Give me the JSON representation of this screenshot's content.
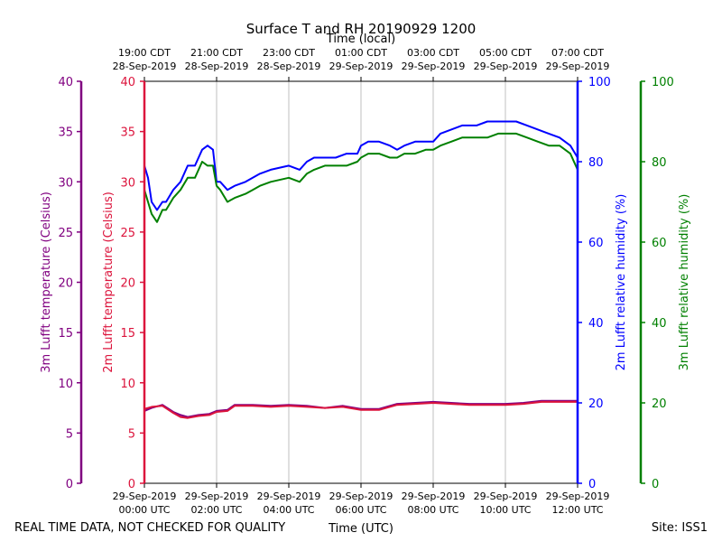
{
  "chart_data": {
    "type": "line",
    "title": "Surface T and RH 20190929 1200",
    "top_axis_label": "Time (local)",
    "xlabel": "Time (UTC)",
    "footer_left": "REAL TIME DATA, NOT CHECKED FOR QUALITY",
    "footer_right": "Site: ISS1",
    "x_range_hours": [
      0,
      12
    ],
    "x_ticks_utc": [
      {
        "h": 0,
        "line1": "29-Sep-2019",
        "line2": "00:00 UTC"
      },
      {
        "h": 2,
        "line1": "29-Sep-2019",
        "line2": "02:00 UTC"
      },
      {
        "h": 4,
        "line1": "29-Sep-2019",
        "line2": "04:00 UTC"
      },
      {
        "h": 6,
        "line1": "29-Sep-2019",
        "line2": "06:00 UTC"
      },
      {
        "h": 8,
        "line1": "29-Sep-2019",
        "line2": "08:00 UTC"
      },
      {
        "h": 10,
        "line1": "29-Sep-2019",
        "line2": "10:00 UTC"
      },
      {
        "h": 12,
        "line1": "29-Sep-2019",
        "line2": "12:00 UTC"
      }
    ],
    "x_ticks_local": [
      {
        "h": 0,
        "line1": "19:00 CDT",
        "line2": "28-Sep-2019"
      },
      {
        "h": 2,
        "line1": "21:00 CDT",
        "line2": "28-Sep-2019"
      },
      {
        "h": 4,
        "line1": "23:00 CDT",
        "line2": "28-Sep-2019"
      },
      {
        "h": 6,
        "line1": "01:00 CDT",
        "line2": "29-Sep-2019"
      },
      {
        "h": 8,
        "line1": "03:00 CDT",
        "line2": "29-Sep-2019"
      },
      {
        "h": 10,
        "line1": "05:00 CDT",
        "line2": "29-Sep-2019"
      },
      {
        "h": 12,
        "line1": "07:00 CDT",
        "line2": "29-Sep-2019"
      }
    ],
    "axes": {
      "temp3m": {
        "label": "3m Lufft temperature (Celsius)",
        "range": [
          0,
          40
        ],
        "ticks": [
          0,
          5,
          10,
          15,
          20,
          25,
          30,
          35,
          40
        ],
        "color": "#800080"
      },
      "temp2m": {
        "label": "2m Lufft temperature (Celsius)",
        "range": [
          0,
          40
        ],
        "ticks": [
          0,
          5,
          10,
          15,
          20,
          25,
          30,
          35,
          40
        ],
        "color": "#dc143c"
      },
      "rh2m": {
        "label": "2m Lufft relative humidity (%)",
        "range": [
          0,
          100
        ],
        "ticks": [
          0,
          20,
          40,
          60,
          80,
          100
        ],
        "color": "#0000ff"
      },
      "rh3m": {
        "label": "3m Lufft relative humidity (%)",
        "range": [
          0,
          100
        ],
        "ticks": [
          0,
          20,
          40,
          60,
          80,
          100
        ],
        "color": "#008000"
      }
    },
    "series": [
      {
        "name": "2m Lufft relative humidity (%)",
        "axis": "rh2m",
        "color": "#0000ff",
        "x": [
          0,
          0.1,
          0.2,
          0.35,
          0.5,
          0.6,
          0.8,
          1.0,
          1.2,
          1.4,
          1.6,
          1.75,
          1.9,
          2.0,
          2.1,
          2.3,
          2.5,
          2.8,
          3.0,
          3.2,
          3.5,
          4.0,
          4.3,
          4.5,
          4.7,
          5.0,
          5.3,
          5.6,
          5.9,
          6.0,
          6.2,
          6.5,
          6.8,
          7.0,
          7.2,
          7.5,
          7.8,
          8.0,
          8.2,
          8.5,
          8.8,
          9.0,
          9.2,
          9.5,
          9.8,
          10.0,
          10.3,
          10.6,
          10.9,
          11.2,
          11.5,
          11.8,
          12.0
        ],
        "values": [
          79,
          76,
          70,
          68,
          70,
          70,
          73,
          75,
          79,
          79,
          83,
          84,
          83,
          75,
          75,
          73,
          74,
          75,
          76,
          77,
          78,
          79,
          78,
          80,
          81,
          81,
          81,
          82,
          82,
          84,
          85,
          85,
          84,
          83,
          84,
          85,
          85,
          85,
          87,
          88,
          89,
          89,
          89,
          90,
          90,
          90,
          90,
          89,
          88,
          87,
          86,
          84,
          81
        ]
      },
      {
        "name": "3m Lufft relative humidity (%)",
        "axis": "rh3m",
        "color": "#008000",
        "x": [
          0,
          0.1,
          0.2,
          0.35,
          0.5,
          0.6,
          0.8,
          1.0,
          1.2,
          1.4,
          1.6,
          1.75,
          1.9,
          2.0,
          2.1,
          2.3,
          2.5,
          2.8,
          3.0,
          3.2,
          3.5,
          4.0,
          4.3,
          4.5,
          4.7,
          5.0,
          5.3,
          5.6,
          5.9,
          6.0,
          6.2,
          6.5,
          6.8,
          7.0,
          7.2,
          7.5,
          7.8,
          8.0,
          8.2,
          8.5,
          8.8,
          9.0,
          9.2,
          9.5,
          9.8,
          10.0,
          10.3,
          10.6,
          10.9,
          11.2,
          11.5,
          11.8,
          12.0
        ],
        "values": [
          73,
          70,
          67,
          65,
          68,
          68,
          71,
          73,
          76,
          76,
          80,
          79,
          79,
          74,
          73,
          70,
          71,
          72,
          73,
          74,
          75,
          76,
          75,
          77,
          78,
          79,
          79,
          79,
          80,
          81,
          82,
          82,
          81,
          81,
          82,
          82,
          83,
          83,
          84,
          85,
          86,
          86,
          86,
          86,
          87,
          87,
          87,
          86,
          85,
          84,
          84,
          82,
          78
        ]
      },
      {
        "name": "3m Lufft temperature (Celsius)",
        "axis": "temp3m",
        "color": "#800080",
        "x": [
          0,
          0.2,
          0.5,
          0.8,
          1.0,
          1.2,
          1.5,
          1.8,
          2.0,
          2.3,
          2.5,
          3.0,
          3.5,
          4.0,
          4.5,
          5.0,
          5.5,
          6.0,
          6.5,
          7.0,
          7.5,
          8.0,
          8.5,
          9.0,
          9.5,
          10.0,
          10.5,
          11.0,
          11.5,
          12.0
        ],
        "values": [
          7.2,
          7.5,
          7.8,
          7.1,
          6.8,
          6.6,
          6.8,
          6.9,
          7.2,
          7.3,
          7.8,
          7.8,
          7.7,
          7.8,
          7.7,
          7.5,
          7.7,
          7.4,
          7.4,
          7.9,
          8.0,
          8.1,
          8.0,
          7.9,
          7.9,
          7.9,
          8.0,
          8.2,
          8.2,
          8.2
        ]
      },
      {
        "name": "2m Lufft temperature (Celsius)",
        "axis": "temp2m",
        "color": "#dc143c",
        "x": [
          0,
          0.2,
          0.5,
          0.8,
          1.0,
          1.2,
          1.5,
          1.8,
          2.0,
          2.3,
          2.5,
          3.0,
          3.5,
          4.0,
          4.5,
          5.0,
          5.5,
          6.0,
          6.5,
          7.0,
          7.5,
          8.0,
          8.5,
          9.0,
          9.5,
          10.0,
          10.5,
          11.0,
          11.5,
          12.0
        ],
        "values": [
          7.4,
          7.6,
          7.7,
          7.0,
          6.6,
          6.5,
          6.7,
          6.8,
          7.1,
          7.2,
          7.7,
          7.7,
          7.6,
          7.7,
          7.6,
          7.5,
          7.6,
          7.3,
          7.3,
          7.8,
          7.9,
          8.0,
          7.9,
          7.8,
          7.8,
          7.8,
          7.9,
          8.1,
          8.1,
          8.1
        ]
      }
    ]
  }
}
